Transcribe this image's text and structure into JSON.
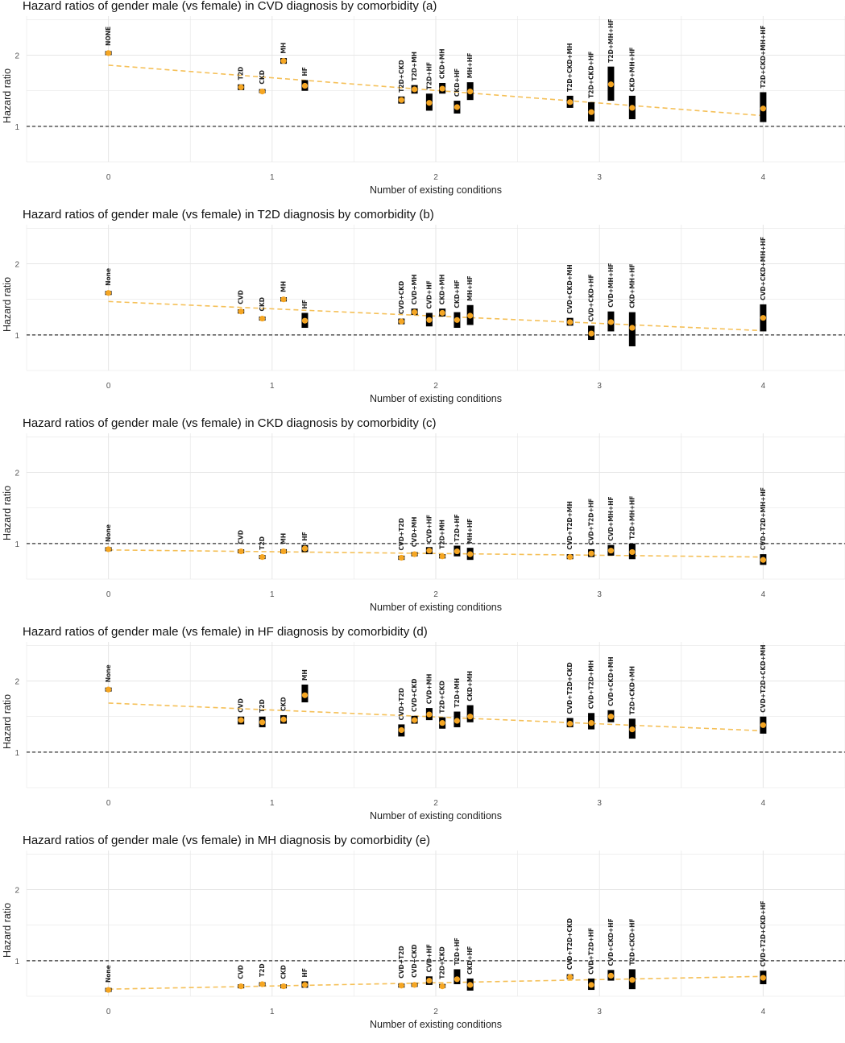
{
  "colors": {
    "point": "#f5a623",
    "trend": "#f5c058",
    "bar": "#000000",
    "grid": "#e6e6e6",
    "reference": "#333333"
  },
  "chart_data": [
    {
      "type": "scatter",
      "title": "Hazard ratios of gender male (vs female) in CVD diagnosis by comorbidity (a)",
      "xlabel": "Number of existing conditions",
      "ylabel": "Hazard ratio",
      "xlim": [
        -0.5,
        4.5
      ],
      "ylim": [
        0.5,
        2.55
      ],
      "xticks": [
        "0",
        "1",
        "2",
        "3",
        "4"
      ],
      "yticks": [
        "1",
        "2"
      ],
      "reference_line": 1,
      "trend": {
        "x": [
          0,
          4
        ],
        "y": [
          1.86,
          1.15
        ]
      },
      "points": [
        {
          "label": "NONE",
          "x": 0.0,
          "hr": 2.03,
          "lo": 2.02,
          "hi": 2.04
        },
        {
          "label": "T2D",
          "x": 0.81,
          "hr": 1.55,
          "lo": 1.51,
          "hi": 1.59
        },
        {
          "label": "CKD",
          "x": 0.94,
          "hr": 1.49,
          "lo": 1.47,
          "hi": 1.52
        },
        {
          "label": "MH",
          "x": 1.07,
          "hr": 1.92,
          "lo": 1.88,
          "hi": 1.96
        },
        {
          "label": "HF",
          "x": 1.2,
          "hr": 1.57,
          "lo": 1.5,
          "hi": 1.65
        },
        {
          "label": "T2D+CKD",
          "x": 1.79,
          "hr": 1.37,
          "lo": 1.32,
          "hi": 1.42
        },
        {
          "label": "T2D+MH",
          "x": 1.87,
          "hr": 1.52,
          "lo": 1.46,
          "hi": 1.58
        },
        {
          "label": "T2D+HF",
          "x": 1.96,
          "hr": 1.33,
          "lo": 1.22,
          "hi": 1.46
        },
        {
          "label": "CKD+MH",
          "x": 2.04,
          "hr": 1.53,
          "lo": 1.46,
          "hi": 1.61
        },
        {
          "label": "CKD+HF",
          "x": 2.13,
          "hr": 1.27,
          "lo": 1.18,
          "hi": 1.36
        },
        {
          "label": "MH+HF",
          "x": 2.21,
          "hr": 1.49,
          "lo": 1.37,
          "hi": 1.62
        },
        {
          "label": "T2D+CKD+MH",
          "x": 2.82,
          "hr": 1.34,
          "lo": 1.26,
          "hi": 1.43
        },
        {
          "label": "T2D+CKD+HF",
          "x": 2.95,
          "hr": 1.2,
          "lo": 1.07,
          "hi": 1.34
        },
        {
          "label": "T2D+MH+HF",
          "x": 3.07,
          "hr": 1.59,
          "lo": 1.36,
          "hi": 1.84
        },
        {
          "label": "CKD+MH+HF",
          "x": 3.2,
          "hr": 1.26,
          "lo": 1.1,
          "hi": 1.43
        },
        {
          "label": "T2D+CKD+MH+HF",
          "x": 4.0,
          "hr": 1.25,
          "lo": 1.06,
          "hi": 1.48
        }
      ]
    },
    {
      "type": "scatter",
      "title": "Hazard ratios of gender male (vs female) in T2D diagnosis by comorbidity (b)",
      "xlabel": "Number of existing conditions",
      "ylabel": "Hazard ratio",
      "xlim": [
        -0.5,
        4.5
      ],
      "ylim": [
        0.5,
        2.55
      ],
      "xticks": [
        "0",
        "1",
        "2",
        "3",
        "4"
      ],
      "yticks": [
        "1",
        "2"
      ],
      "reference_line": 1,
      "trend": {
        "x": [
          0,
          4
        ],
        "y": [
          1.47,
          1.06
        ]
      },
      "points": [
        {
          "label": "None",
          "x": 0.0,
          "hr": 1.59,
          "lo": 1.58,
          "hi": 1.6
        },
        {
          "label": "CVD",
          "x": 0.81,
          "hr": 1.33,
          "lo": 1.3,
          "hi": 1.36
        },
        {
          "label": "CKD",
          "x": 0.94,
          "hr": 1.23,
          "lo": 1.21,
          "hi": 1.25
        },
        {
          "label": "MH",
          "x": 1.07,
          "hr": 1.5,
          "lo": 1.47,
          "hi": 1.53
        },
        {
          "label": "HF",
          "x": 1.2,
          "hr": 1.2,
          "lo": 1.1,
          "hi": 1.31
        },
        {
          "label": "CVD+CKD",
          "x": 1.79,
          "hr": 1.19,
          "lo": 1.15,
          "hi": 1.23
        },
        {
          "label": "CVD+MH",
          "x": 1.87,
          "hr": 1.32,
          "lo": 1.28,
          "hi": 1.37
        },
        {
          "label": "CVD+HF",
          "x": 1.96,
          "hr": 1.21,
          "lo": 1.12,
          "hi": 1.31
        },
        {
          "label": "CKD+MH",
          "x": 2.04,
          "hr": 1.31,
          "lo": 1.26,
          "hi": 1.37
        },
        {
          "label": "CKD+HF",
          "x": 2.13,
          "hr": 1.21,
          "lo": 1.1,
          "hi": 1.32
        },
        {
          "label": "MH+HF",
          "x": 2.21,
          "hr": 1.27,
          "lo": 1.14,
          "hi": 1.42
        },
        {
          "label": "CVD+CKD+MH",
          "x": 2.82,
          "hr": 1.18,
          "lo": 1.13,
          "hi": 1.24
        },
        {
          "label": "CVD+CKD+HF",
          "x": 2.95,
          "hr": 1.02,
          "lo": 0.93,
          "hi": 1.13
        },
        {
          "label": "CVD+MH+HF",
          "x": 3.07,
          "hr": 1.18,
          "lo": 1.05,
          "hi": 1.33
        },
        {
          "label": "CKD+MH+HF",
          "x": 3.2,
          "hr": 1.1,
          "lo": 0.84,
          "hi": 1.32
        },
        {
          "label": "CVD+CKD+MH+HF",
          "x": 4.0,
          "hr": 1.24,
          "lo": 1.05,
          "hi": 1.43
        }
      ]
    },
    {
      "type": "scatter",
      "title": "Hazard ratios of gender male (vs female) in CKD diagnosis by comorbidity (c)",
      "xlabel": "Number of existing conditions",
      "ylabel": "Hazard ratio",
      "xlim": [
        -0.5,
        4.5
      ],
      "ylim": [
        0.5,
        2.55
      ],
      "xticks": [
        "0",
        "1",
        "2",
        "3",
        "4"
      ],
      "yticks": [
        "1",
        "2"
      ],
      "reference_line": 1,
      "trend": {
        "x": [
          0,
          4
        ],
        "y": [
          0.91,
          0.81
        ]
      },
      "points": [
        {
          "label": "None",
          "x": 0.0,
          "hr": 0.92,
          "lo": 0.91,
          "hi": 0.93
        },
        {
          "label": "CVD",
          "x": 0.81,
          "hr": 0.89,
          "lo": 0.87,
          "hi": 0.91
        },
        {
          "label": "T2D",
          "x": 0.94,
          "hr": 0.81,
          "lo": 0.79,
          "hi": 0.83
        },
        {
          "label": "MH",
          "x": 1.07,
          "hr": 0.89,
          "lo": 0.86,
          "hi": 0.92
        },
        {
          "label": "HF",
          "x": 1.2,
          "hr": 0.93,
          "lo": 0.88,
          "hi": 0.98
        },
        {
          "label": "CVD+T2D",
          "x": 1.79,
          "hr": 0.8,
          "lo": 0.77,
          "hi": 0.83
        },
        {
          "label": "CVD+MH",
          "x": 1.87,
          "hr": 0.85,
          "lo": 0.82,
          "hi": 0.88
        },
        {
          "label": "CVD+HF",
          "x": 1.96,
          "hr": 0.9,
          "lo": 0.85,
          "hi": 0.95
        },
        {
          "label": "T2D+MH",
          "x": 2.04,
          "hr": 0.82,
          "lo": 0.79,
          "hi": 0.85
        },
        {
          "label": "T2D+HF",
          "x": 2.13,
          "hr": 0.89,
          "lo": 0.82,
          "hi": 0.97
        },
        {
          "label": "MH+HF",
          "x": 2.21,
          "hr": 0.85,
          "lo": 0.77,
          "hi": 0.94
        },
        {
          "label": "CVD+T2D+MH",
          "x": 2.82,
          "hr": 0.81,
          "lo": 0.78,
          "hi": 0.85
        },
        {
          "label": "CVD+T2D+HF",
          "x": 2.95,
          "hr": 0.86,
          "lo": 0.81,
          "hi": 0.92
        },
        {
          "label": "CVD+MH+HF",
          "x": 3.07,
          "hr": 0.9,
          "lo": 0.83,
          "hi": 0.98
        },
        {
          "label": "T2D+MH+HF",
          "x": 3.2,
          "hr": 0.88,
          "lo": 0.78,
          "hi": 1.0
        },
        {
          "label": "CVD+T2D+MH+HF",
          "x": 4.0,
          "hr": 0.77,
          "lo": 0.7,
          "hi": 0.85
        }
      ]
    },
    {
      "type": "scatter",
      "title": "Hazard ratios of gender male (vs female) in HF diagnosis by comorbidity (d)",
      "xlabel": "Number of existing conditions",
      "ylabel": "Hazard ratio",
      "xlim": [
        -0.5,
        4.5
      ],
      "ylim": [
        0.5,
        2.55
      ],
      "xticks": [
        "0",
        "1",
        "2",
        "3",
        "4"
      ],
      "yticks": [
        "1",
        "2"
      ],
      "reference_line": 1,
      "trend": {
        "x": [
          0,
          4
        ],
        "y": [
          1.69,
          1.3
        ]
      },
      "points": [
        {
          "label": "None",
          "x": 0.0,
          "hr": 1.88,
          "lo": 1.87,
          "hi": 1.89
        },
        {
          "label": "CVD",
          "x": 0.81,
          "hr": 1.45,
          "lo": 1.39,
          "hi": 1.5
        },
        {
          "label": "T2D",
          "x": 0.94,
          "hr": 1.42,
          "lo": 1.35,
          "hi": 1.5
        },
        {
          "label": "CKD",
          "x": 1.07,
          "hr": 1.46,
          "lo": 1.4,
          "hi": 1.52
        },
        {
          "label": "MH",
          "x": 1.2,
          "hr": 1.8,
          "lo": 1.7,
          "hi": 1.95
        },
        {
          "label": "CVD+T2D",
          "x": 1.79,
          "hr": 1.31,
          "lo": 1.22,
          "hi": 1.39
        },
        {
          "label": "CVD+CKD",
          "x": 1.87,
          "hr": 1.45,
          "lo": 1.4,
          "hi": 1.51
        },
        {
          "label": "CVD+MH",
          "x": 1.96,
          "hr": 1.53,
          "lo": 1.45,
          "hi": 1.62
        },
        {
          "label": "T2D+CKD",
          "x": 2.04,
          "hr": 1.41,
          "lo": 1.33,
          "hi": 1.49
        },
        {
          "label": "T2D+MH",
          "x": 2.13,
          "hr": 1.44,
          "lo": 1.35,
          "hi": 1.57
        },
        {
          "label": "CKD+MH",
          "x": 2.21,
          "hr": 1.5,
          "lo": 1.42,
          "hi": 1.66
        },
        {
          "label": "CVD+T2D+CKD",
          "x": 2.82,
          "hr": 1.4,
          "lo": 1.35,
          "hi": 1.48
        },
        {
          "label": "CVD+T2D+MH",
          "x": 2.95,
          "hr": 1.41,
          "lo": 1.32,
          "hi": 1.55
        },
        {
          "label": "CVD+CKD+MH",
          "x": 3.07,
          "hr": 1.5,
          "lo": 1.42,
          "hi": 1.59
        },
        {
          "label": "T2D+CKD+MH",
          "x": 3.2,
          "hr": 1.32,
          "lo": 1.19,
          "hi": 1.47
        },
        {
          "label": "CVD+T2D+CKD+MH",
          "x": 4.0,
          "hr": 1.38,
          "lo": 1.26,
          "hi": 1.5
        }
      ]
    },
    {
      "type": "scatter",
      "title": "Hazard ratios of gender male (vs female) in MH diagnosis by comorbidity (e)",
      "xlabel": "Number of existing conditions",
      "ylabel": "Hazard ratio",
      "xlim": [
        -0.5,
        4.5
      ],
      "ylim": [
        0.5,
        2.55
      ],
      "xticks": [
        "0",
        "1",
        "2",
        "3",
        "4"
      ],
      "yticks": [
        "1",
        "2"
      ],
      "reference_line": 1,
      "trend": {
        "x": [
          0,
          4
        ],
        "y": [
          0.6,
          0.78
        ]
      },
      "points": [
        {
          "label": "None",
          "x": 0.0,
          "hr": 0.59,
          "lo": 0.58,
          "hi": 0.6
        },
        {
          "label": "CVD",
          "x": 0.81,
          "hr": 0.64,
          "lo": 0.63,
          "hi": 0.65
        },
        {
          "label": "T2D",
          "x": 0.94,
          "hr": 0.67,
          "lo": 0.66,
          "hi": 0.68
        },
        {
          "label": "CKD",
          "x": 1.07,
          "hr": 0.64,
          "lo": 0.63,
          "hi": 0.65
        },
        {
          "label": "HF",
          "x": 1.2,
          "hr": 0.66,
          "lo": 0.62,
          "hi": 0.71
        },
        {
          "label": "CVD+T2D",
          "x": 1.79,
          "hr": 0.65,
          "lo": 0.63,
          "hi": 0.67
        },
        {
          "label": "CVD+CKD",
          "x": 1.87,
          "hr": 0.66,
          "lo": 0.64,
          "hi": 0.68
        },
        {
          "label": "CVD+HF",
          "x": 1.96,
          "hr": 0.72,
          "lo": 0.66,
          "hi": 0.78
        },
        {
          "label": "T2D+CKD",
          "x": 2.04,
          "hr": 0.64,
          "lo": 0.62,
          "hi": 0.67
        },
        {
          "label": "T2D+HF",
          "x": 2.13,
          "hr": 0.74,
          "lo": 0.67,
          "hi": 0.88
        },
        {
          "label": "CKD+HF",
          "x": 2.21,
          "hr": 0.66,
          "lo": 0.58,
          "hi": 0.75
        },
        {
          "label": "CVD+T2D+CKD",
          "x": 2.82,
          "hr": 0.77,
          "lo": 0.74,
          "hi": 0.81
        },
        {
          "label": "CVD+T2D+HF",
          "x": 2.95,
          "hr": 0.66,
          "lo": 0.59,
          "hi": 0.75
        },
        {
          "label": "CVD+CKD+HF",
          "x": 3.07,
          "hr": 0.79,
          "lo": 0.72,
          "hi": 0.87
        },
        {
          "label": "T2D+CKD+HF",
          "x": 3.2,
          "hr": 0.73,
          "lo": 0.6,
          "hi": 0.88
        },
        {
          "label": "CVD+T2D+CKD+HF",
          "x": 4.0,
          "hr": 0.76,
          "lo": 0.67,
          "hi": 0.86
        }
      ]
    }
  ]
}
